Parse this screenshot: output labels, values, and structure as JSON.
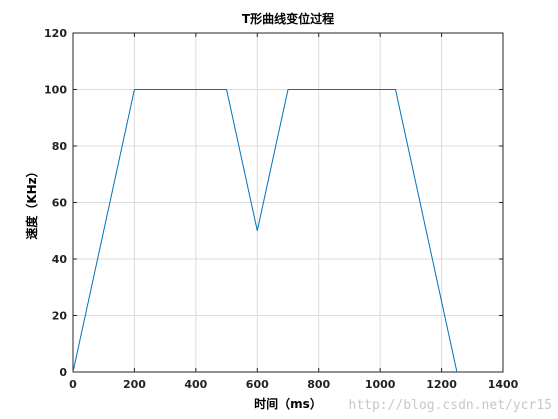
{
  "chart_data": {
    "type": "line",
    "title": "T形曲线变位过程",
    "xlabel": "时间（ms）",
    "ylabel": "速度（KHz）",
    "xlim": [
      0,
      1400
    ],
    "ylim": [
      0,
      120
    ],
    "xticks": [
      0,
      200,
      400,
      600,
      800,
      1000,
      1200,
      1400
    ],
    "yticks": [
      0,
      20,
      40,
      60,
      80,
      100,
      120
    ],
    "xtick_labels": [
      "0",
      "200",
      "400",
      "600",
      "800",
      "1000",
      "1200",
      "1400"
    ],
    "ytick_labels": [
      "0",
      "20",
      "40",
      "60",
      "80",
      "100",
      "120"
    ],
    "grid": true,
    "series": [
      {
        "x": [
          0,
          200,
          500,
          600,
          700,
          1050,
          1250
        ],
        "y": [
          0,
          100,
          100,
          50,
          100,
          100,
          0
        ]
      }
    ],
    "colors": {
      "line": "#0072bd",
      "grid": "#dcdcdc",
      "axis": "#262626"
    }
  },
  "watermark": "http://blog.csdn.net/ycr15"
}
